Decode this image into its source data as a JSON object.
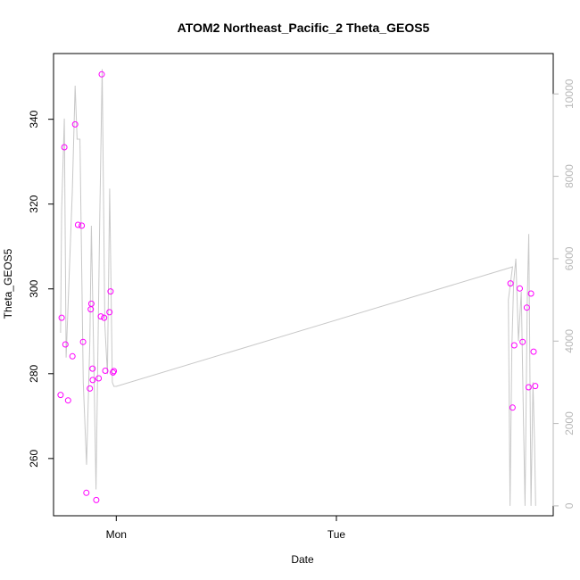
{
  "chart_data": {
    "type": "scatter",
    "title": "ATOM2 Northeast_Pacific_2 Theta_GEOS5",
    "xlabel": "Date",
    "ylabel": "Theta_GEOS5",
    "x_ticks": [
      {
        "x": 0.0,
        "label": "Mon"
      },
      {
        "x": 1.0,
        "label": "Tue"
      }
    ],
    "y_left": {
      "ticks": [
        260,
        280,
        300,
        320,
        340
      ],
      "lim": [
        246.5,
        355.5
      ]
    },
    "y_right": {
      "ticks": [
        0,
        2000,
        4000,
        6000,
        8000,
        10000
      ],
      "lim": [
        -240,
        10980
      ],
      "color": "#b8b8b8"
    },
    "grid": false,
    "series": [
      {
        "kind": "points",
        "axis": "left",
        "color": "#ff00ff",
        "x": [
          -0.253,
          -0.248,
          -0.236,
          -0.231,
          -0.219,
          -0.199,
          -0.187,
          -0.174,
          -0.157,
          -0.151,
          -0.136,
          -0.12,
          -0.116,
          -0.113,
          -0.108,
          -0.107,
          -0.091,
          -0.08,
          -0.07,
          -0.066,
          -0.055,
          -0.05,
          -0.031,
          -0.026,
          -0.015,
          -0.011,
          1.8,
          1.791,
          1.808,
          1.833,
          1.846,
          1.865,
          1.873,
          1.884,
          1.896,
          1.903
        ],
        "y": [
          275.0,
          293.2,
          333.4,
          286.9,
          273.7,
          284.1,
          338.8,
          315.1,
          314.9,
          287.5,
          251.9,
          276.5,
          295.2,
          296.5,
          281.2,
          278.5,
          250.2,
          278.9,
          293.5,
          350.6,
          293.2,
          280.7,
          294.5,
          299.4,
          280.3,
          280.6,
          272.0,
          301.3,
          286.7,
          300.1,
          287.5,
          295.6,
          276.8,
          298.9,
          285.2,
          277.1
        ]
      },
      {
        "kind": "line",
        "axis": "right",
        "color": "#c8c8c8",
        "x": [
          -0.253,
          -0.248,
          -0.236,
          -0.228,
          -0.2,
          -0.187,
          -0.178,
          -0.165,
          -0.15,
          -0.135,
          -0.12,
          -0.113,
          -0.103,
          -0.092,
          -0.075,
          -0.064,
          -0.052,
          -0.04,
          -0.03,
          -0.018,
          -0.011,
          0.0,
          1.8,
          1.781,
          1.789,
          1.797,
          1.805,
          1.815,
          1.827,
          1.84,
          1.85,
          1.857,
          1.867,
          1.874,
          1.884,
          1.893,
          1.9,
          1.905
        ],
        "y": [
          4200,
          7200,
          9400,
          3600,
          7600,
          10200,
          8900,
          8900,
          3000,
          1000,
          4000,
          6800,
          3800,
          400,
          7000,
          10600,
          4400,
          3200,
          7700,
          3000,
          2900,
          2900,
          5800,
          5000,
          0,
          3800,
          5400,
          6000,
          4000,
          5200,
          2000,
          0,
          5000,
          6600,
          0,
          3000,
          1600,
          0
        ]
      }
    ]
  }
}
